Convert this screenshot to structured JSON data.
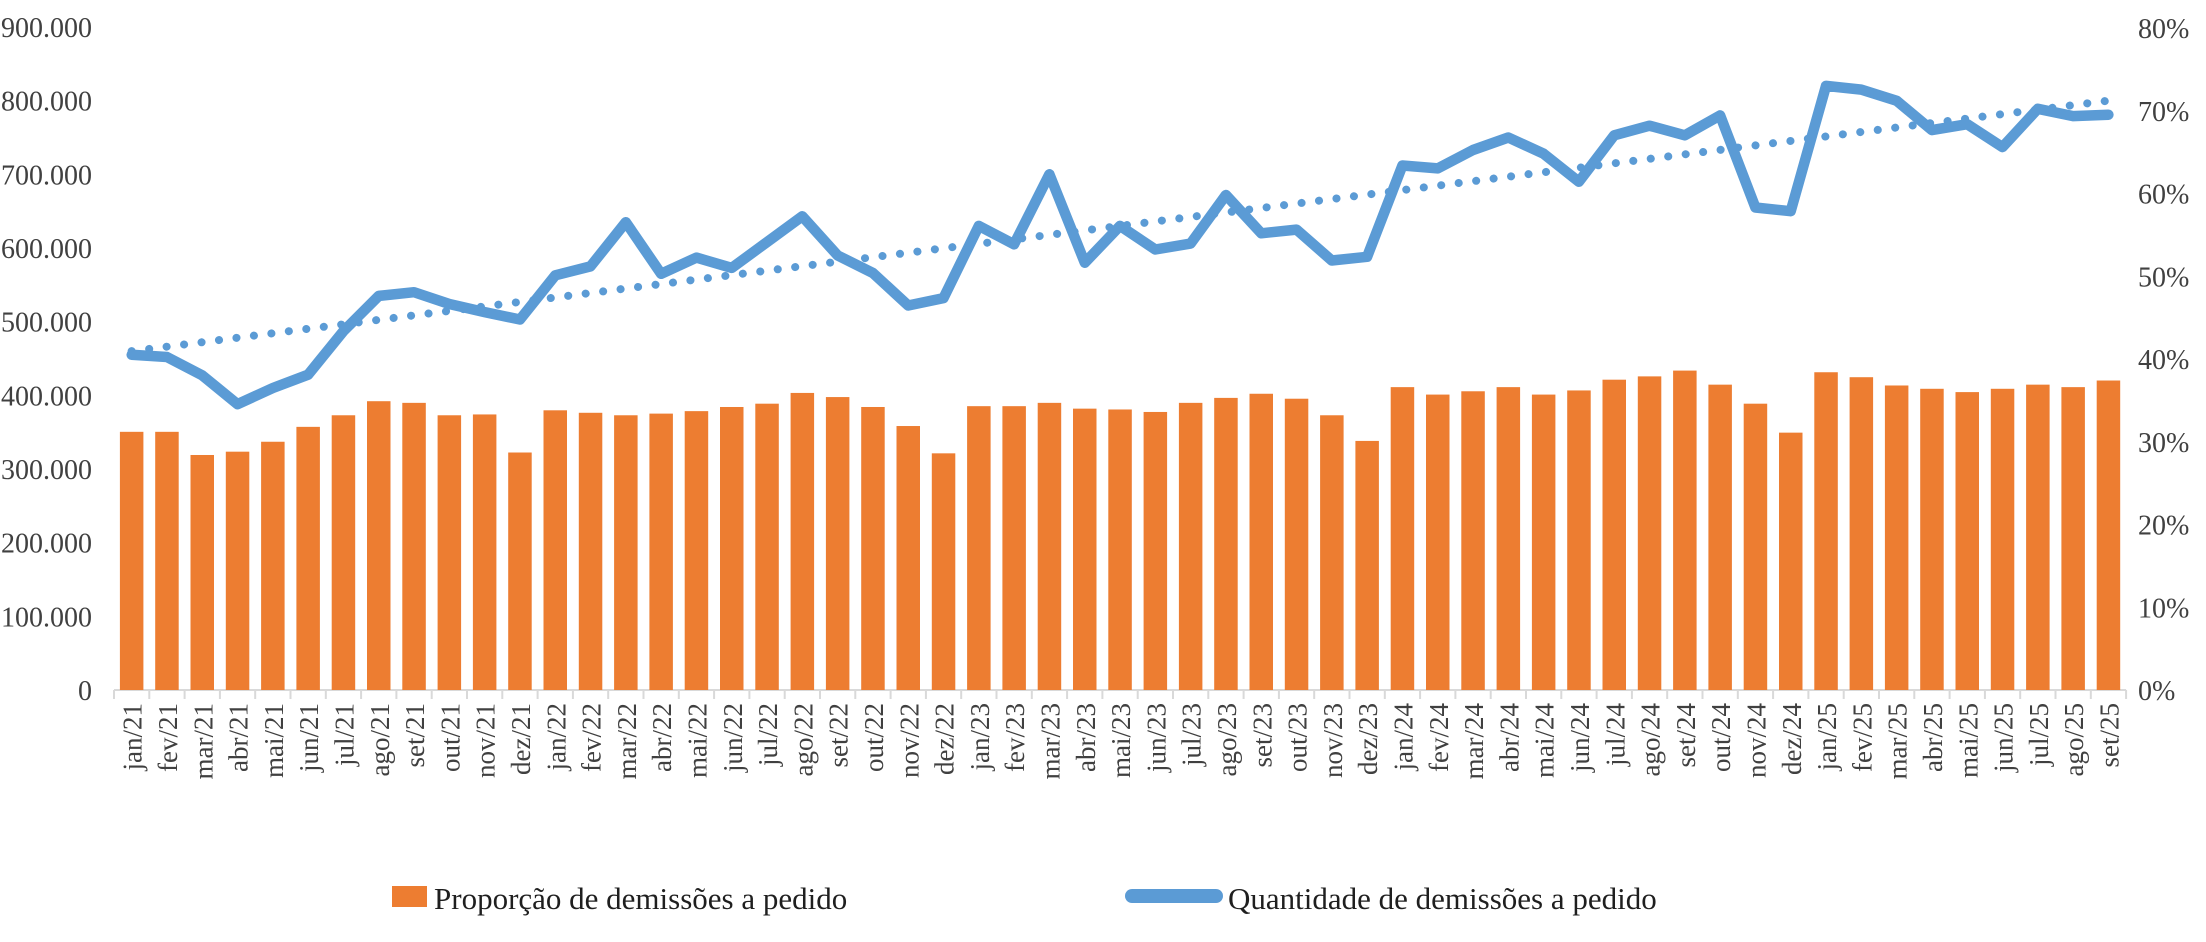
{
  "chart_data": {
    "type": "combo",
    "title": "",
    "categories": [
      "jan/21",
      "fev/21",
      "mar/21",
      "abr/21",
      "mai/21",
      "jun/21",
      "jul/21",
      "ago/21",
      "set/21",
      "out/21",
      "nov/21",
      "dez/21",
      "jan/22",
      "fev/22",
      "mar/22",
      "abr/22",
      "mai/22",
      "jun/22",
      "jul/22",
      "ago/22",
      "set/22",
      "out/22",
      "nov/22",
      "dez/22",
      "jan/23",
      "fev/23",
      "mar/23",
      "abr/23",
      "mai/23",
      "jun/23",
      "jul/23",
      "ago/23",
      "set/23",
      "out/23",
      "nov/23",
      "dez/23",
      "jan/24",
      "fev/24",
      "mar/24",
      "abr/24",
      "mai/24",
      "jun/24",
      "jul/24",
      "ago/24",
      "set/24",
      "out/24",
      "nov/24",
      "dez/24",
      "jan/25",
      "fev/25",
      "mar/25",
      "abr/25",
      "mai/25",
      "jun/25",
      "jul/25",
      "ago/25",
      "set/25"
    ],
    "series": [
      {
        "name": "Proporção de demissões a pedido",
        "type": "bar",
        "axis": "right",
        "unit": "%",
        "color": "#ED7D31",
        "values": [
          31.2,
          31.2,
          28.4,
          28.8,
          30.0,
          31.8,
          33.2,
          34.9,
          34.7,
          33.2,
          33.3,
          28.7,
          33.8,
          33.5,
          33.2,
          33.4,
          33.7,
          34.2,
          34.6,
          35.9,
          35.4,
          34.2,
          31.9,
          28.6,
          34.3,
          34.3,
          34.7,
          34.0,
          33.9,
          33.6,
          34.7,
          35.3,
          35.8,
          35.2,
          33.2,
          30.1,
          36.6,
          35.7,
          36.1,
          36.6,
          35.7,
          36.2,
          37.5,
          37.9,
          38.6,
          36.9,
          34.6,
          31.1,
          38.4,
          37.8,
          36.8,
          36.4,
          36.0,
          36.4,
          36.9,
          36.6,
          37.4
        ]
      },
      {
        "name": "Quantidade de demissões a pedido",
        "type": "line",
        "axis": "left",
        "color": "#5B9BD5",
        "values": [
          455000,
          452000,
          427000,
          388000,
          410000,
          428000,
          487000,
          535000,
          540000,
          524000,
          513000,
          503000,
          563000,
          575000,
          635000,
          565000,
          587000,
          573000,
          608000,
          643000,
          590000,
          566000,
          522000,
          532000,
          630000,
          605000,
          700000,
          580000,
          630000,
          598000,
          606000,
          672000,
          620000,
          625000,
          583000,
          588000,
          712000,
          708000,
          733000,
          750000,
          728000,
          690000,
          753000,
          766000,
          753000,
          780000,
          655000,
          650000,
          820000,
          815000,
          800000,
          760000,
          768000,
          737000,
          789000,
          779000,
          781000
        ]
      },
      {
        "name": "trendline",
        "type": "dotted-line",
        "axis": "left",
        "color": "#5B9BD5",
        "start_value": 460000,
        "end_value": 800000
      }
    ],
    "left_axis": {
      "min": 0,
      "max": 900000,
      "step": 100000,
      "labels": [
        "0",
        "100.000",
        "200.000",
        "300.000",
        "400.000",
        "500.000",
        "600.000",
        "700.000",
        "800.000",
        "900.000"
      ]
    },
    "right_axis": {
      "min": 0,
      "max": 80,
      "step": 10,
      "labels": [
        "0%",
        "10%",
        "20%",
        "30%",
        "40%",
        "50%",
        "60%",
        "70%",
        "80%"
      ]
    },
    "grid": false,
    "legend_position": "bottom",
    "legend": [
      {
        "label": "Proporção de demissões a pedido",
        "marker": "bar-swatch",
        "color": "#ED7D31"
      },
      {
        "label": "Quantidade de demissões a pedido",
        "marker": "line-swatch",
        "color": "#5B9BD5"
      }
    ],
    "colors": {
      "bar": "#ED7D31",
      "line": "#5B9BD5",
      "axis_line": "#D9D9D9",
      "axis_text": "#404040",
      "legend_text": "#1F1F1F",
      "background": "#FFFFFF"
    }
  }
}
